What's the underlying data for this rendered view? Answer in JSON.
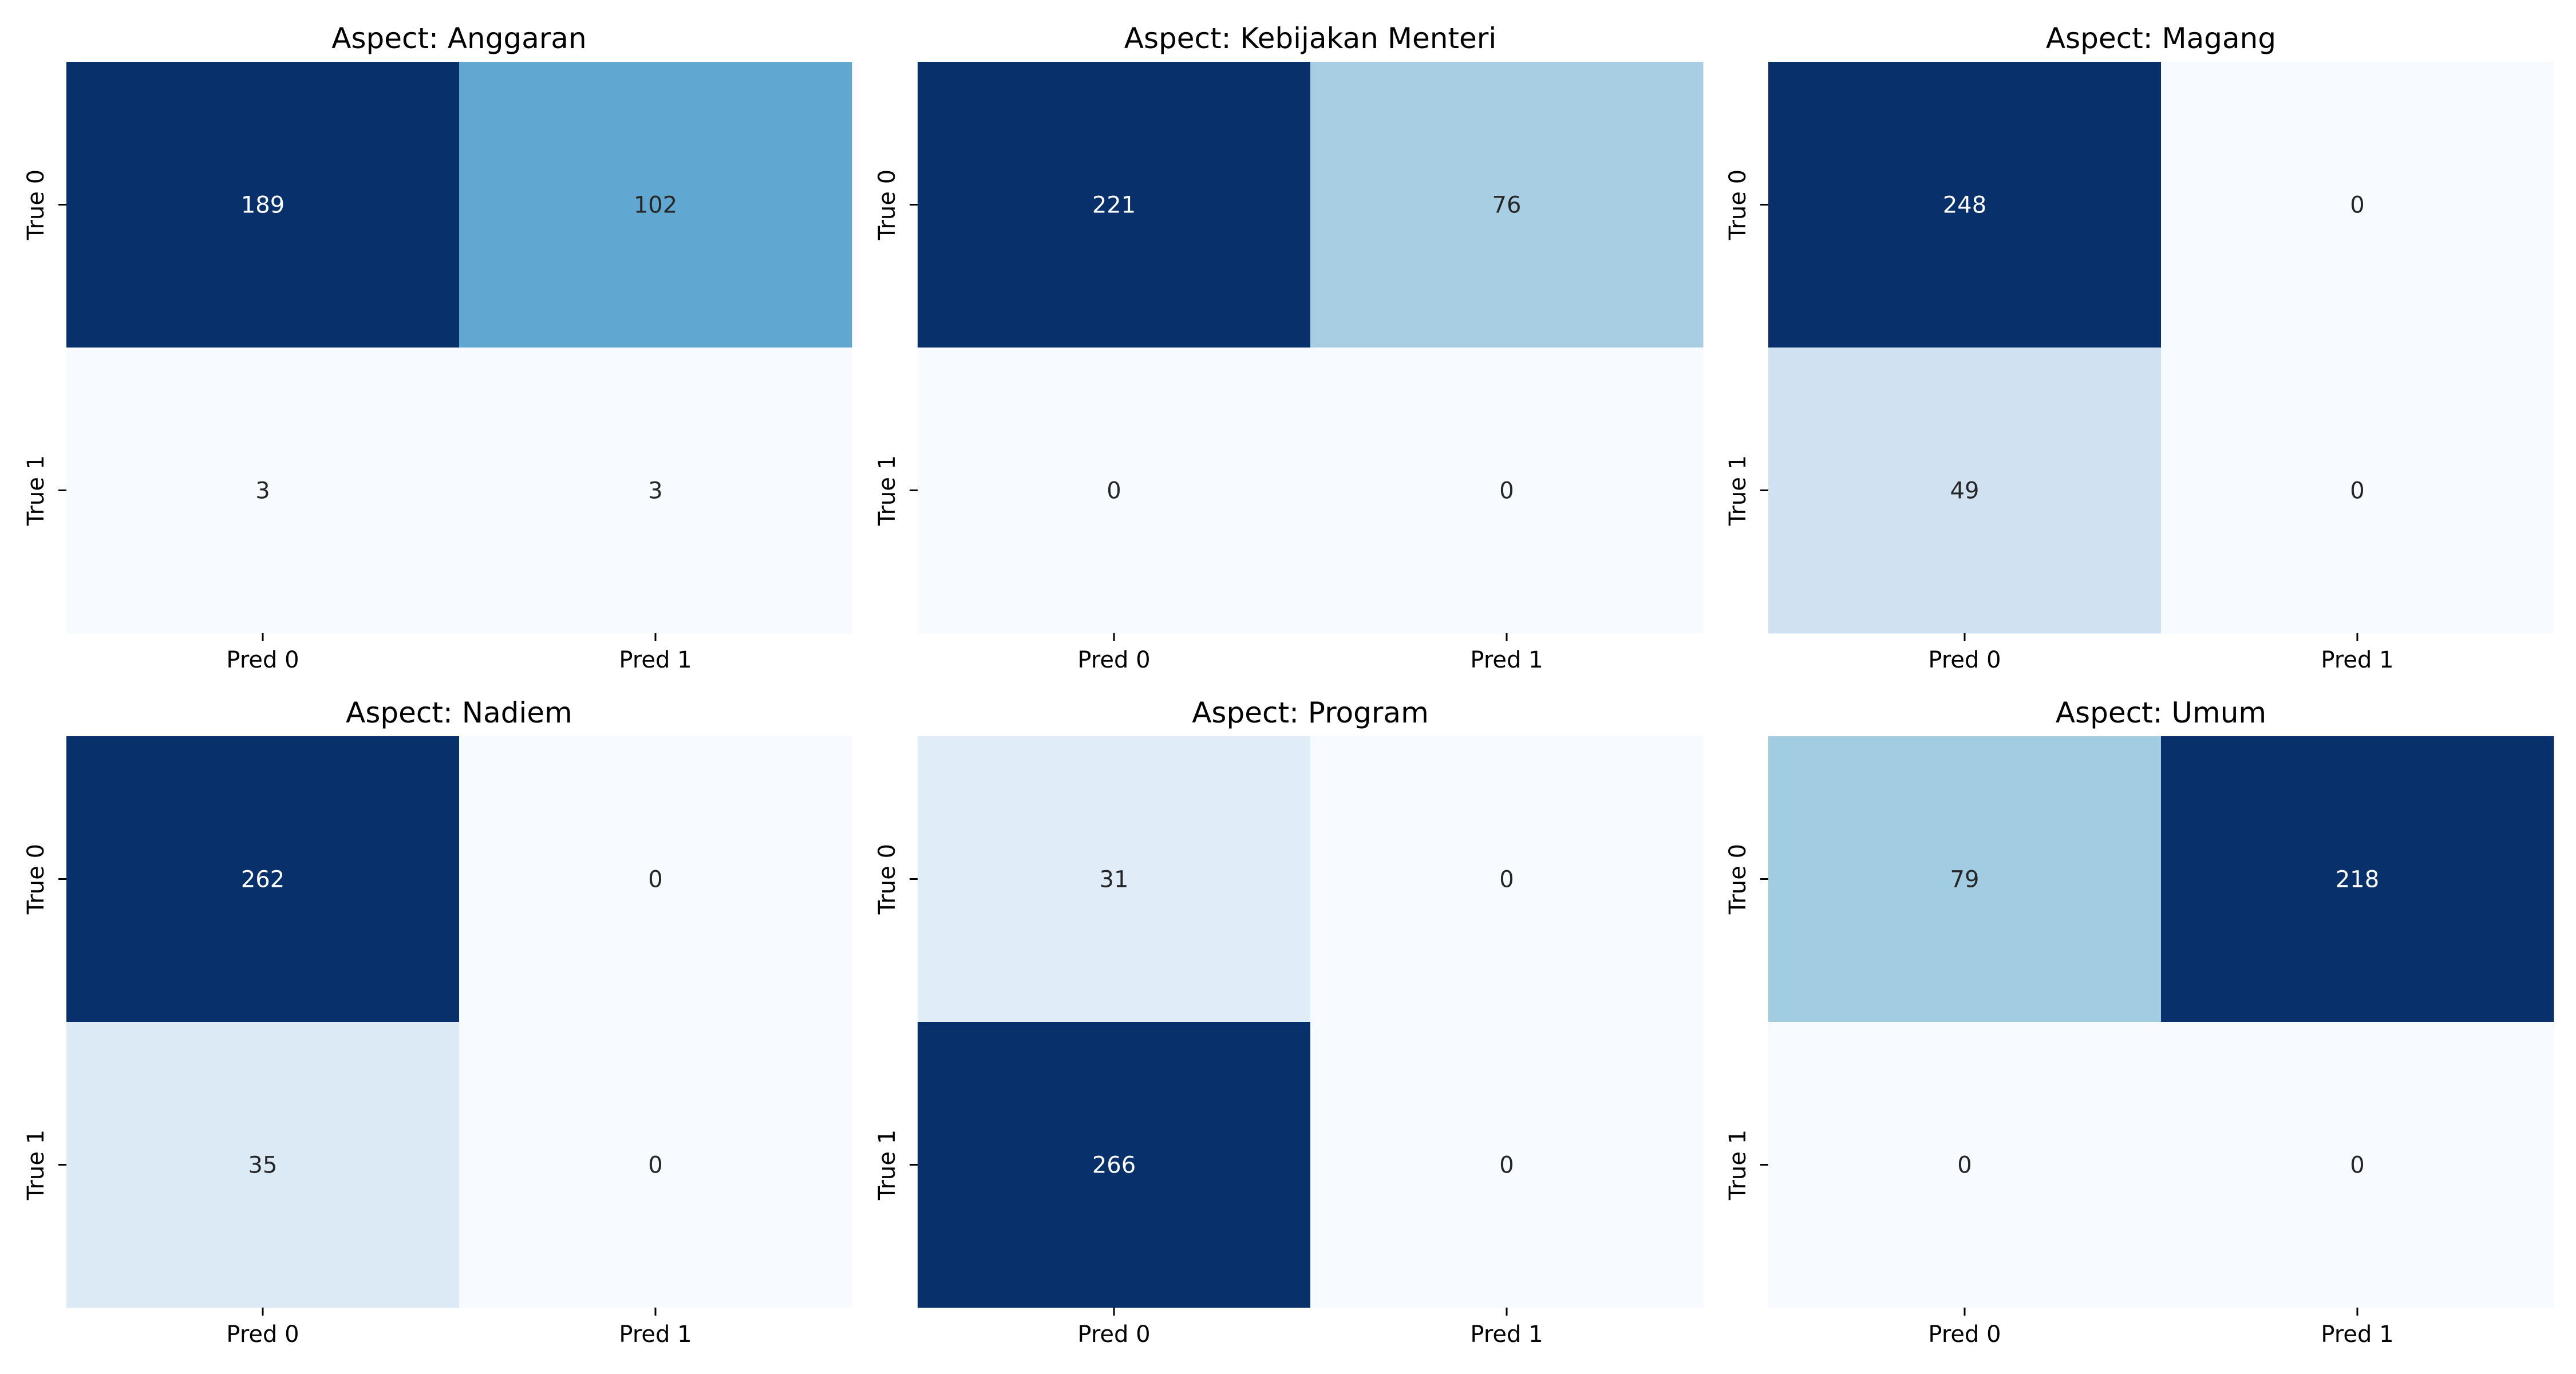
{
  "chart_data": [
    {
      "type": "heatmap",
      "title": "Aspect: Anggaran",
      "x_tick_labels": [
        "Pred 0",
        "Pred 1"
      ],
      "y_tick_labels": [
        "True 0",
        "True 1"
      ],
      "values": [
        [
          189,
          102
        ],
        [
          3,
          3
        ]
      ],
      "colormap": "Blues",
      "colorbar": false
    },
    {
      "type": "heatmap",
      "title": "Aspect: Kebijakan Menteri",
      "x_tick_labels": [
        "Pred 0",
        "Pred 1"
      ],
      "y_tick_labels": [
        "True 0",
        "True 1"
      ],
      "values": [
        [
          221,
          76
        ],
        [
          0,
          0
        ]
      ],
      "colormap": "Blues",
      "colorbar": false
    },
    {
      "type": "heatmap",
      "title": "Aspect: Magang",
      "x_tick_labels": [
        "Pred 0",
        "Pred 1"
      ],
      "y_tick_labels": [
        "True 0",
        "True 1"
      ],
      "values": [
        [
          248,
          0
        ],
        [
          49,
          0
        ]
      ],
      "colormap": "Blues",
      "colorbar": false
    },
    {
      "type": "heatmap",
      "title": "Aspect: Nadiem",
      "x_tick_labels": [
        "Pred 0",
        "Pred 1"
      ],
      "y_tick_labels": [
        "True 0",
        "True 1"
      ],
      "values": [
        [
          262,
          0
        ],
        [
          35,
          0
        ]
      ],
      "colormap": "Blues",
      "colorbar": false
    },
    {
      "type": "heatmap",
      "title": "Aspect: Program",
      "x_tick_labels": [
        "Pred 0",
        "Pred 1"
      ],
      "y_tick_labels": [
        "True 0",
        "True 1"
      ],
      "values": [
        [
          31,
          0
        ],
        [
          266,
          0
        ]
      ],
      "colormap": "Blues",
      "colorbar": false
    },
    {
      "type": "heatmap",
      "title": "Aspect: Umum",
      "x_tick_labels": [
        "Pred 0",
        "Pred 1"
      ],
      "y_tick_labels": [
        "True 0",
        "True 1"
      ],
      "values": [
        [
          79,
          218
        ],
        [
          0,
          0
        ]
      ],
      "colormap": "Blues",
      "colorbar": false
    }
  ]
}
